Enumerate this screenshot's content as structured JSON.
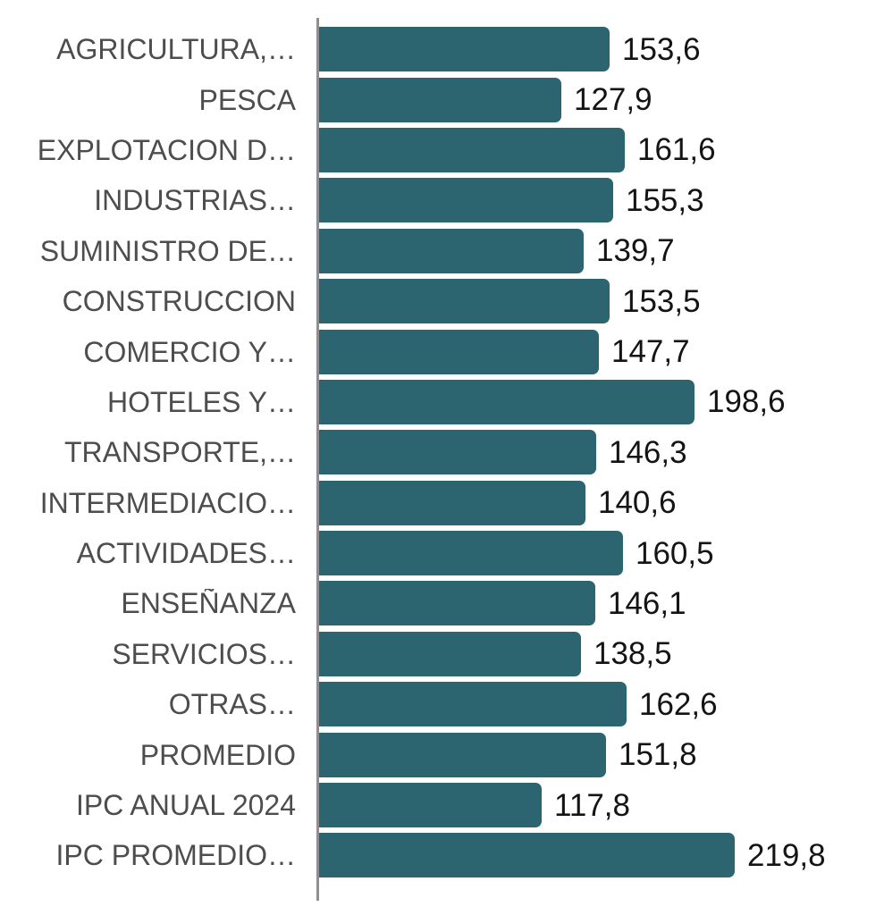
{
  "chart_data": {
    "type": "bar",
    "orientation": "horizontal",
    "title": "",
    "xlabel": "",
    "ylabel": "",
    "grid": false,
    "legend": false,
    "categories": [
      "AGRICULTURA,…",
      "PESCA",
      "EXPLOTACION D…",
      "INDUSTRIAS…",
      "SUMINISTRO DE…",
      "CONSTRUCCION",
      "COMERCIO Y…",
      "HOTELES Y…",
      "TRANSPORTE,…",
      "INTERMEDIACIO…",
      "ACTIVIDADES…",
      "ENSEÑANZA",
      "SERVICIOS…",
      "OTRAS…",
      "PROMEDIO",
      "IPC ANUAL 2024",
      "IPC PROMEDIO…"
    ],
    "values": [
      153.6,
      127.9,
      161.6,
      155.3,
      139.7,
      153.5,
      147.7,
      198.6,
      146.3,
      140.6,
      160.5,
      146.1,
      138.5,
      162.6,
      151.8,
      117.8,
      219.8
    ],
    "value_labels": [
      "153,6",
      "127,9",
      "161,6",
      "155,3",
      "139,7",
      "153,5",
      "147,7",
      "198,6",
      "146,3",
      "140,6",
      "160,5",
      "146,1",
      "138,5",
      "162,6",
      "151,8",
      "117,8",
      "219,8"
    ],
    "colors": {
      "bar": "#2c6470",
      "category_text": "#4d4d4d",
      "value_text": "#141414",
      "axis_line": "#8f8f8f",
      "background": "#ffffff"
    }
  }
}
